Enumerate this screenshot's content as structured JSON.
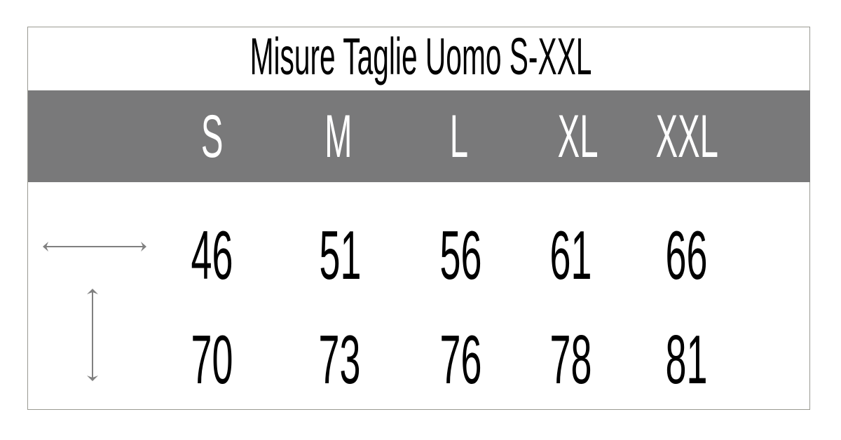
{
  "title": "Misure Taglie Uomo S-XXL",
  "sizes": [
    "S",
    "M",
    "L",
    "XL",
    "XXL"
  ],
  "rows": [
    {
      "icon": "horizontal-width-arrow-icon",
      "values": [
        "46",
        "51",
        "56",
        "61",
        "66"
      ]
    },
    {
      "icon": "vertical-length-arrow-icon",
      "values": [
        "70",
        "73",
        "76",
        "78",
        "81"
      ]
    }
  ],
  "colors": {
    "header_band": "#79797a",
    "arrow": "#808080",
    "text": "#000000"
  }
}
